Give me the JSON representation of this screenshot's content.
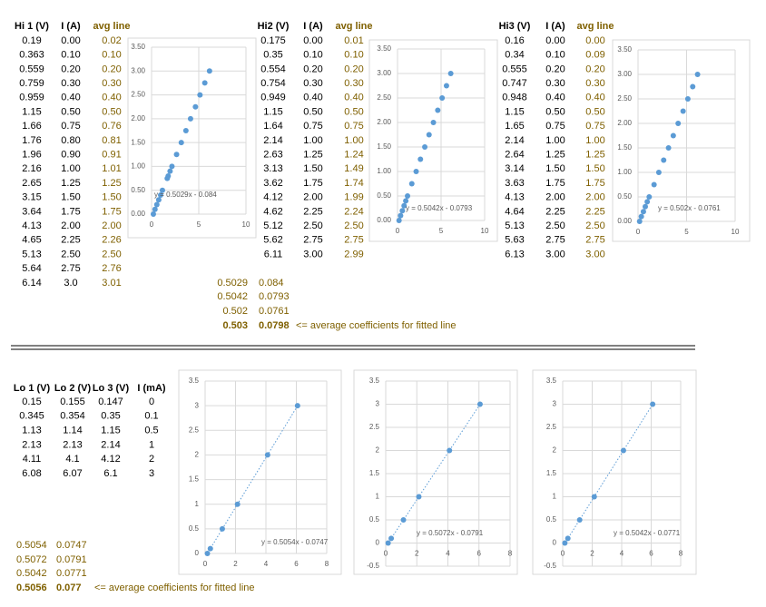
{
  "hi_tables": [
    {
      "headers": [
        "Hi 1 (V)",
        "I (A)",
        "avg line"
      ],
      "rows": [
        [
          "0.19",
          "0.00",
          "0.02"
        ],
        [
          "0.363",
          "0.10",
          "0.10"
        ],
        [
          "0.559",
          "0.20",
          "0.20"
        ],
        [
          "0.759",
          "0.30",
          "0.30"
        ],
        [
          "0.959",
          "0.40",
          "0.40"
        ],
        [
          "1.15",
          "0.50",
          "0.50"
        ],
        [
          "1.66",
          "0.75",
          "0.76"
        ],
        [
          "1.76",
          "0.80",
          "0.81"
        ],
        [
          "1.96",
          "0.90",
          "0.91"
        ],
        [
          "2.16",
          "1.00",
          "1.01"
        ],
        [
          "2.65",
          "1.25",
          "1.25"
        ],
        [
          "3.15",
          "1.50",
          "1.50"
        ],
        [
          "3.64",
          "1.75",
          "1.75"
        ],
        [
          "4.13",
          "2.00",
          "2.00"
        ],
        [
          "4.65",
          "2.25",
          "2.26"
        ],
        [
          "5.13",
          "2.50",
          "2.50"
        ],
        [
          "5.64",
          "2.75",
          "2.76"
        ],
        [
          "6.14",
          "3.0",
          "3.01"
        ]
      ]
    },
    {
      "headers": [
        "Hi2 (V)",
        "I (A)",
        "avg line"
      ],
      "rows": [
        [
          "0.175",
          "0.00",
          "0.01"
        ],
        [
          "0.35",
          "0.10",
          "0.10"
        ],
        [
          "0.554",
          "0.20",
          "0.20"
        ],
        [
          "0.754",
          "0.30",
          "0.30"
        ],
        [
          "0.949",
          "0.40",
          "0.40"
        ],
        [
          "1.15",
          "0.50",
          "0.50"
        ],
        [
          "1.64",
          "0.75",
          "0.75"
        ],
        [
          "2.14",
          "1.00",
          "1.00"
        ],
        [
          "2.63",
          "1.25",
          "1.24"
        ],
        [
          "3.13",
          "1.50",
          "1.49"
        ],
        [
          "3.62",
          "1.75",
          "1.74"
        ],
        [
          "4.12",
          "2.00",
          "1.99"
        ],
        [
          "4.62",
          "2.25",
          "2.24"
        ],
        [
          "5.12",
          "2.50",
          "2.50"
        ],
        [
          "5.62",
          "2.75",
          "2.75"
        ],
        [
          "6.11",
          "3.00",
          "2.99"
        ]
      ]
    },
    {
      "headers": [
        "Hi3 (V)",
        "I (A)",
        "avg line"
      ],
      "rows": [
        [
          "0.16",
          "0.00",
          "0.00"
        ],
        [
          "0.34",
          "0.10",
          "0.09"
        ],
        [
          "0.555",
          "0.20",
          "0.20"
        ],
        [
          "0.747",
          "0.30",
          "0.30"
        ],
        [
          "0.948",
          "0.40",
          "0.40"
        ],
        [
          "1.15",
          "0.50",
          "0.50"
        ],
        [
          "1.65",
          "0.75",
          "0.75"
        ],
        [
          "2.14",
          "1.00",
          "1.00"
        ],
        [
          "2.64",
          "1.25",
          "1.25"
        ],
        [
          "3.14",
          "1.50",
          "1.50"
        ],
        [
          "3.63",
          "1.75",
          "1.75"
        ],
        [
          "4.13",
          "2.00",
          "2.00"
        ],
        [
          "4.64",
          "2.25",
          "2.25"
        ],
        [
          "5.13",
          "2.50",
          "2.50"
        ],
        [
          "5.63",
          "2.75",
          "2.75"
        ],
        [
          "6.13",
          "3.00",
          "3.00"
        ]
      ]
    }
  ],
  "hi_coefficients": {
    "rows": [
      [
        "0.5029",
        "0.084"
      ],
      [
        "0.5042",
        "0.0793"
      ],
      [
        "0.502",
        "0.0761"
      ]
    ],
    "average": [
      "0.503",
      "0.0798"
    ],
    "note": "<= average coefficients for fitted line"
  },
  "lo_table": {
    "headers": [
      "Lo 1 (V)",
      "Lo 2 (V)",
      "Lo 3 (V)",
      "I (mA)"
    ],
    "rows": [
      [
        "0.15",
        "0.155",
        "0.147",
        "0"
      ],
      [
        "0.345",
        "0.354",
        "0.35",
        "0.1"
      ],
      [
        "1.13",
        "1.14",
        "1.15",
        "0.5"
      ],
      [
        "2.13",
        "2.13",
        "2.14",
        "1"
      ],
      [
        "4.11",
        "4.1",
        "4.12",
        "2"
      ],
      [
        "6.08",
        "6.07",
        "6.1",
        "3"
      ]
    ]
  },
  "lo_coefficients": {
    "rows": [
      [
        "0.5054",
        "0.0747"
      ],
      [
        "0.5072",
        "0.0791"
      ],
      [
        "0.5042",
        "0.0771"
      ]
    ],
    "average": [
      "0.5056",
      "0.077"
    ],
    "note": "<= average coefficients for fitted line"
  },
  "charts": [
    {
      "type": "scatter",
      "color": "#5b9bd5",
      "grid": true,
      "xlim": [
        0,
        10
      ],
      "ylim": [
        0,
        3.5
      ],
      "xticks": [
        0,
        5,
        10
      ],
      "yticks": [
        {
          "value": 0,
          "label": "0.00"
        },
        {
          "value": 0.5,
          "label": "0.50"
        },
        {
          "value": 1,
          "label": "1.00"
        },
        {
          "value": 1.5,
          "label": "1.50"
        },
        {
          "value": 2,
          "label": "2.00"
        },
        {
          "value": 2.5,
          "label": "2.50"
        },
        {
          "value": 3,
          "label": "3.00"
        },
        {
          "value": 3.5,
          "label": "3.50"
        }
      ],
      "trendline_label": "y = 0.5029x - 0.084"
    },
    {
      "type": "scatter",
      "color": "#5b9bd5",
      "grid": true,
      "xlim": [
        0,
        10
      ],
      "ylim": [
        0,
        3.5
      ],
      "xticks": [
        0,
        5,
        10
      ],
      "yticks": [
        {
          "value": 0,
          "label": "0.00"
        },
        {
          "value": 0.5,
          "label": "0.50"
        },
        {
          "value": 1,
          "label": "1.00"
        },
        {
          "value": 1.5,
          "label": "1.50"
        },
        {
          "value": 2,
          "label": "2.00"
        },
        {
          "value": 2.5,
          "label": "2.50"
        },
        {
          "value": 3,
          "label": "3.00"
        },
        {
          "value": 3.5,
          "label": "3.50"
        }
      ],
      "trendline_label": "y = 0.5042x - 0.0793"
    },
    {
      "type": "scatter",
      "color": "#5b9bd5",
      "grid": true,
      "xlim": [
        0,
        10
      ],
      "ylim": [
        0,
        3.5
      ],
      "xticks": [
        0,
        5,
        10
      ],
      "yticks": [
        {
          "value": 0,
          "label": "0.00"
        },
        {
          "value": 0.5,
          "label": "0.50"
        },
        {
          "value": 1,
          "label": "1.00"
        },
        {
          "value": 1.5,
          "label": "1.50"
        },
        {
          "value": 2,
          "label": "2.00"
        },
        {
          "value": 2.5,
          "label": "2.50"
        },
        {
          "value": 3,
          "label": "3.00"
        },
        {
          "value": 3.5,
          "label": "3.50"
        }
      ],
      "trendline_label": "y = 0.502x - 0.0761"
    },
    {
      "type": "scatter",
      "color": "#5b9bd5",
      "grid": true,
      "trendline": true,
      "xlim": [
        0,
        8
      ],
      "ylim": [
        0,
        3.5
      ],
      "xticks": [
        0,
        2,
        4,
        6,
        8
      ],
      "yticks": [
        0,
        0.5,
        1,
        1.5,
        2,
        2.5,
        3,
        3.5
      ],
      "trendline_label": "y = 0.5054x - 0.0747"
    },
    {
      "type": "scatter",
      "color": "#5b9bd5",
      "grid": true,
      "trendline": true,
      "xlim": [
        0,
        8
      ],
      "ylim": [
        -0.5,
        3.5
      ],
      "xticks": [
        0,
        2,
        4,
        6,
        8
      ],
      "yticks": [
        -0.5,
        0,
        0.5,
        1,
        1.5,
        2,
        2.5,
        3,
        3.5
      ],
      "trendline_label": "y = 0.5072x - 0.0791"
    },
    {
      "type": "scatter",
      "color": "#5b9bd5",
      "grid": true,
      "trendline": true,
      "xlim": [
        0,
        8
      ],
      "ylim": [
        -0.5,
        3.5
      ],
      "xticks": [
        0,
        2,
        4,
        6,
        8
      ],
      "yticks": [
        -0.5,
        0,
        0.5,
        1,
        1.5,
        2,
        2.5,
        3,
        3.5
      ],
      "trendline_label": "y = 0.5042x - 0.0771"
    }
  ]
}
